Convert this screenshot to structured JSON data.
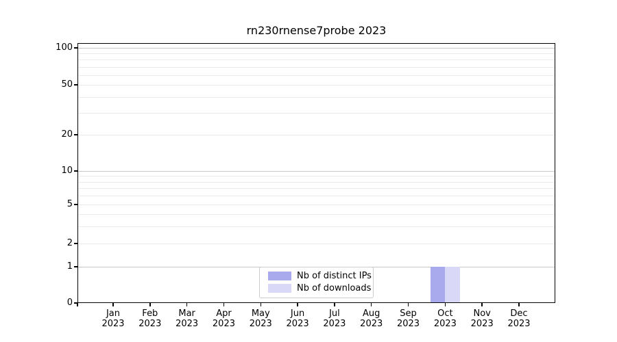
{
  "title": "rn230rnense7probe 2023",
  "colors": {
    "distinct_ips": "#a9a9ee",
    "downloads": "#d9d9f7",
    "grid_major": "#c6c6c6",
    "grid_minor": "#ebebeb",
    "axis": "#000000",
    "legend_border": "#cccccc",
    "background": "#ffffff"
  },
  "legend": {
    "items": [
      {
        "label": "Nb of distinct IPs",
        "color": "#a9a9ee"
      },
      {
        "label": "Nb of downloads",
        "color": "#d9d9f7"
      }
    ]
  },
  "chart_data": {
    "type": "bar",
    "title": "rn230rnense7probe 2023",
    "categories": [
      "Jan 2023",
      "Feb 2023",
      "Mar 2023",
      "Apr 2023",
      "May 2023",
      "Jun 2023",
      "Jul 2023",
      "Aug 2023",
      "Sep 2023",
      "Oct 2023",
      "Nov 2023",
      "Dec 2023"
    ],
    "series": [
      {
        "name": "Nb of distinct IPs",
        "color": "#a9a9ee",
        "values": [
          0,
          0,
          0,
          0,
          0,
          0,
          0,
          0,
          0,
          1,
          0,
          0
        ]
      },
      {
        "name": "Nb of downloads",
        "color": "#d9d9f7",
        "values": [
          0,
          0,
          0,
          0,
          0,
          0,
          0,
          0,
          0,
          1,
          0,
          0
        ]
      }
    ],
    "yscale": "log above 1, linear below 1 (symlog)",
    "yticks_labeled": [
      100,
      50,
      20,
      10,
      5,
      2,
      1,
      0
    ],
    "ylim": [
      0,
      110
    ],
    "xlabel": "",
    "ylabel": "",
    "grid": "horizontal major and minor gridlines",
    "legend_position": "lower center"
  }
}
